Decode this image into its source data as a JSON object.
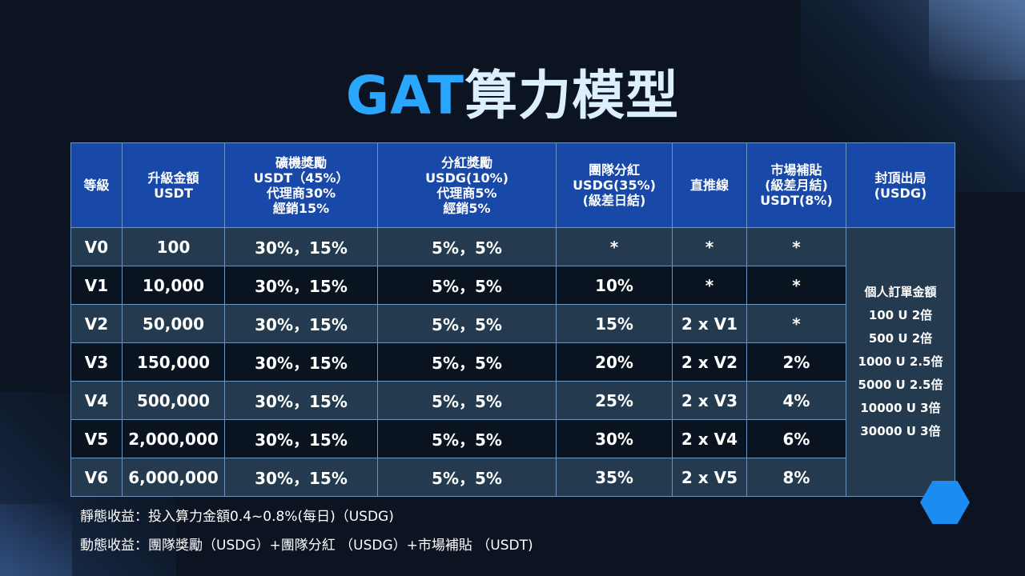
{
  "title": {
    "part1": "GAT",
    "part2": "算力模型"
  },
  "headers": [
    [
      "等級"
    ],
    [
      "升級金額",
      "USDT"
    ],
    [
      "礦機獎勵",
      "USDT（45%）",
      "代理商30%",
      "經銷15%"
    ],
    [
      "分紅獎勵",
      "USDG(10%)",
      "代理商5%",
      "經銷5%"
    ],
    [
      "團隊分紅",
      "USDG(35%)",
      "(級差日結)"
    ],
    [
      "直推線"
    ],
    [
      "市場補貼",
      "(級差月結)",
      "USDT(8%)"
    ],
    [
      "封頂出局",
      "(USDG)"
    ]
  ],
  "rows": [
    [
      "V0",
      "100",
      "30%，15%",
      "5%，5%",
      "*",
      "*",
      "*"
    ],
    [
      "V1",
      "10,000",
      "30%，15%",
      "5%，5%",
      "10%",
      "*",
      "*"
    ],
    [
      "V2",
      "50,000",
      "30%，15%",
      "5%，5%",
      "15%",
      "2 x V1",
      "*"
    ],
    [
      "V3",
      "150,000",
      "30%，15%",
      "5%，5%",
      "20%",
      "2 x V2",
      "2%"
    ],
    [
      "V4",
      "500,000",
      "30%，15%",
      "5%，5%",
      "25%",
      "2 x V3",
      "4%"
    ],
    [
      "V5",
      "2,000,000",
      "30%，15%",
      "5%，5%",
      "30%",
      "2 x V4",
      "6%"
    ],
    [
      "V6",
      "6,000,000",
      "30%，15%",
      "5%，5%",
      "35%",
      "2 x V5",
      "8%"
    ]
  ],
  "cap": [
    "個人訂單金額",
    "100 U 2倍",
    "500 U 2倍",
    "1000 U 2.5倍",
    "5000 U 2.5倍",
    "10000 U 3倍",
    "30000 U 3倍"
  ],
  "notes": {
    "static": "靜態收益：投入算力金額0.4~0.8%(每日)（USDG)",
    "dynamic": "動態收益：團隊獎勵（USDG）+團隊分紅 （USDG）+市場補貼 （USDT)"
  },
  "colors": {
    "header_bg": "#1848a8",
    "row_light": "#243a4e",
    "row_dark": "#0a1320",
    "title_accent": "#2aa6ff",
    "hexagon": "#1d8cf0"
  },
  "decorations": {
    "hexagon_icon": "hexagon-icon"
  }
}
